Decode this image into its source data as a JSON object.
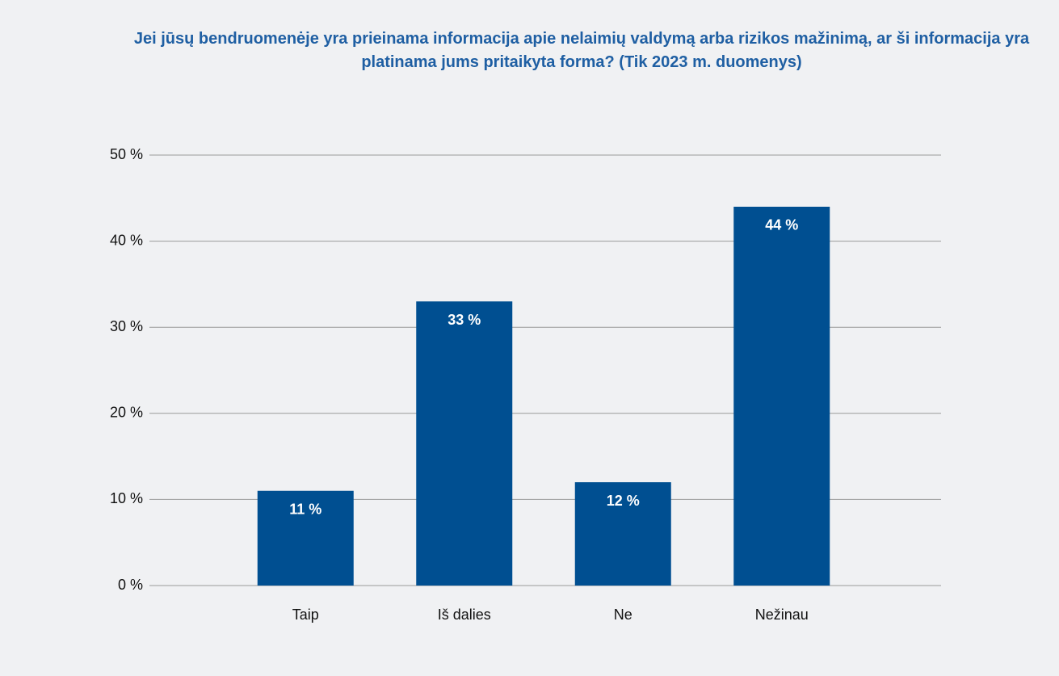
{
  "chart_data": {
    "type": "bar",
    "title": "Jei jūsų bendruomenėje yra prieinama informacija apie nelaimių valdymą arba rizikos mažinimą, ar ši informacija yra platinama jums pritaikyta forma? (Tik 2023 m. duomenys)",
    "categories": [
      "Taip",
      "Iš dalies",
      "Ne",
      "Nežinau"
    ],
    "values": [
      11,
      33,
      12,
      44
    ],
    "value_labels": [
      "11 %",
      "33 %",
      "12 %",
      "44 %"
    ],
    "color": "#004f91",
    "ylim": [
      0,
      50
    ],
    "yticks": [
      {
        "value": 0,
        "label": "0 %"
      },
      {
        "value": 10,
        "label": "10 %"
      },
      {
        "value": 20,
        "label": "20 %"
      },
      {
        "value": 30,
        "label": "30 %"
      },
      {
        "value": 40,
        "label": "40 %"
      },
      {
        "value": 50,
        "label": "50 %"
      }
    ],
    "grid": true
  }
}
